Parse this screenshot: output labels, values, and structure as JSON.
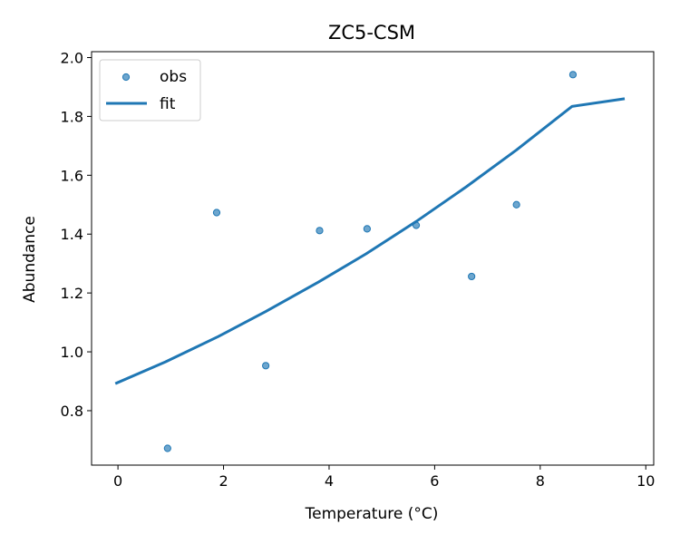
{
  "chart_data": {
    "type": "scatter",
    "title": "ZC5-CSM",
    "xlabel": "Temperature (°C)",
    "ylabel": "Abundance",
    "xlim": [
      -0.5,
      10.15
    ],
    "ylim": [
      0.615,
      2.02
    ],
    "xticks": [
      0,
      2,
      4,
      6,
      8,
      10
    ],
    "yticks": [
      0.8,
      1.0,
      1.2,
      1.4,
      1.6,
      1.8,
      2.0
    ],
    "xtick_labels": [
      "0",
      "2",
      "4",
      "6",
      "8",
      "10"
    ],
    "ytick_labels": [
      "0.8",
      "1.0",
      "1.2",
      "1.4",
      "1.6",
      "1.8",
      "2.0"
    ],
    "grid": false,
    "legend_position": "top-left",
    "colors": {
      "points": "#1f77b4",
      "fit": "#1f77b4"
    },
    "series": [
      {
        "name": "obs",
        "kind": "scatter",
        "x": [
          0.94,
          1.87,
          2.8,
          3.82,
          4.72,
          5.65,
          6.7,
          7.55,
          8.62
        ],
        "y": [
          0.672,
          1.473,
          0.953,
          1.412,
          1.418,
          1.43,
          1.256,
          1.5,
          1.942
        ]
      },
      {
        "name": "fit",
        "kind": "line",
        "x": [
          -0.05,
          0.9,
          1.9,
          2.8,
          3.8,
          4.7,
          5.65,
          6.6,
          7.55,
          8.6,
          9.6
        ],
        "y": [
          0.892,
          0.966,
          1.052,
          1.137,
          1.237,
          1.333,
          1.443,
          1.561,
          1.686,
          1.834,
          1.86
        ]
      }
    ]
  }
}
